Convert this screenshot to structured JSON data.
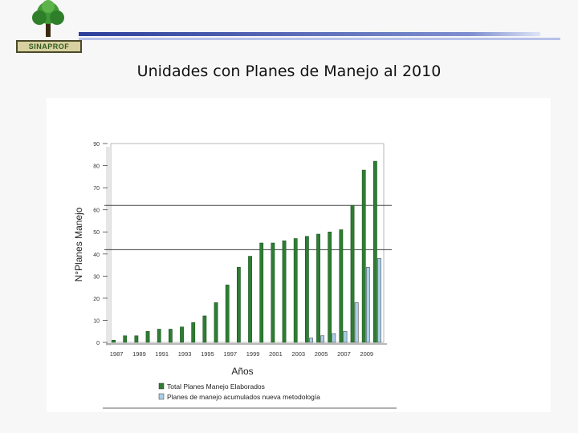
{
  "header": {
    "logo_label": "SINAPROF",
    "slide_title": "Unidades con Planes de Manejo al 2010"
  },
  "colors": {
    "series_total": "#2e7d32",
    "series_new": "#a9cfe8",
    "header_bar": "#3b4fa8"
  },
  "chart_data": {
    "type": "bar",
    "title": "",
    "xlabel": "Años",
    "ylabel": "N°Planes Manejo",
    "ylim": [
      0,
      90
    ],
    "yticks": [
      0,
      10,
      20,
      30,
      40,
      50,
      60,
      70,
      80,
      90
    ],
    "xtick_labels": [
      "1987",
      "1989",
      "1991",
      "1993",
      "1995",
      "1997",
      "1999",
      "2001",
      "2003",
      "2005",
      "2007",
      "2009"
    ],
    "categories": [
      "1987",
      "1988",
      "1989",
      "1990",
      "1991",
      "1992",
      "1993",
      "1994",
      "1995",
      "1996",
      "1997",
      "1998",
      "1999",
      "2000",
      "2001",
      "2002",
      "2003",
      "2004",
      "2005",
      "2006",
      "2007",
      "2008",
      "2009",
      "2010"
    ],
    "reference_lines": [
      62,
      42
    ],
    "legend_position": "bottom",
    "series": [
      {
        "name": "Total Planes Manejo Elaborados",
        "values": [
          1,
          3,
          3,
          5,
          6,
          6,
          7,
          9,
          12,
          18,
          26,
          34,
          39,
          45,
          45,
          46,
          47,
          48,
          49,
          50,
          51,
          62,
          78,
          82
        ]
      },
      {
        "name": "Planes de manejo acumulados nueva metodología",
        "values": [
          0,
          0,
          0,
          0,
          0,
          0,
          0,
          0,
          0,
          0,
          0,
          0,
          0,
          0,
          0,
          0,
          0,
          2,
          3,
          4,
          5,
          18,
          34,
          38
        ]
      }
    ]
  }
}
